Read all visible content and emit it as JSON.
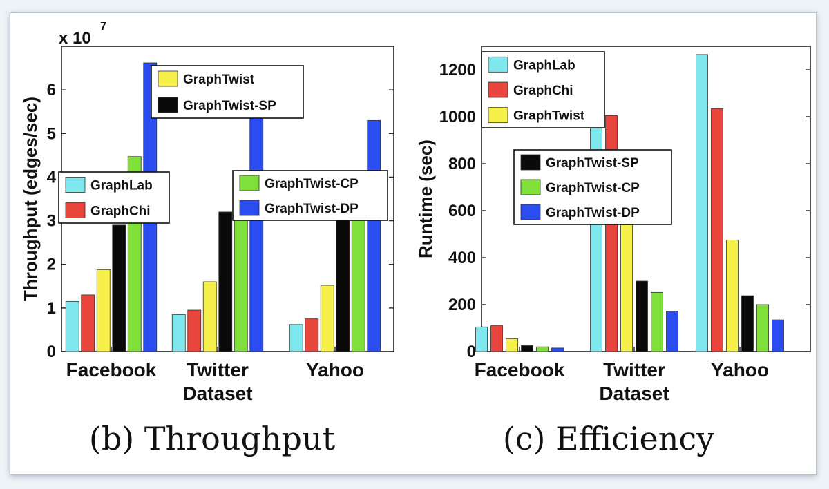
{
  "captions": {
    "left": "(b) Throughput",
    "right": "(c) Efficiency"
  },
  "colors": {
    "GraphLab": "#7ee8ee",
    "GraphChi": "#e8453c",
    "GraphTwist": "#f8f04a",
    "GraphTwist-SP": "#0a0a0a",
    "GraphTwist-CP": "#7fe03a",
    "GraphTwist-DP": "#2a4cf0"
  },
  "chart_data": [
    {
      "type": "bar",
      "categories": [
        "Facebook",
        "Twitter",
        "Yahoo"
      ],
      "xlabel": "Dataset",
      "ylabel": "Throughput (edges/sec)",
      "scale_label": "x 10",
      "scale_exp": "7",
      "ylim": [
        0,
        7
      ],
      "yticks": [
        "0",
        "1",
        "2",
        "3",
        "4",
        "5",
        "6"
      ],
      "series": [
        {
          "name": "GraphLab",
          "values": [
            1.15,
            0.85,
            0.62
          ]
        },
        {
          "name": "GraphChi",
          "values": [
            1.3,
            0.95,
            0.75
          ]
        },
        {
          "name": "GraphTwist",
          "values": [
            1.88,
            1.6,
            1.52
          ]
        },
        {
          "name": "GraphTwist-SP",
          "values": [
            2.9,
            3.2,
            3.05
          ]
        },
        {
          "name": "GraphTwist-CP",
          "values": [
            4.47,
            3.5,
            3.1
          ]
        },
        {
          "name": "GraphTwist-DP",
          "values": [
            6.62,
            5.6,
            5.3
          ]
        }
      ]
    },
    {
      "type": "bar",
      "categories": [
        "Facebook",
        "Twitter",
        "Yahoo"
      ],
      "xlabel": "Dataset",
      "ylabel": "Runtime (sec)",
      "ylim": [
        0,
        1300
      ],
      "yticks": [
        "0",
        "200",
        "400",
        "600",
        "800",
        "1000",
        "1200"
      ],
      "series": [
        {
          "name": "GraphLab",
          "values": [
            105,
            1080,
            1265
          ]
        },
        {
          "name": "GraphChi",
          "values": [
            110,
            1005,
            1035
          ]
        },
        {
          "name": "GraphTwist",
          "values": [
            55,
            540,
            475
          ]
        },
        {
          "name": "GraphTwist-SP",
          "values": [
            25,
            300,
            238
          ]
        },
        {
          "name": "GraphTwist-CP",
          "values": [
            20,
            252,
            200
          ]
        },
        {
          "name": "GraphTwist-DP",
          "values": [
            15,
            172,
            135
          ]
        }
      ]
    }
  ]
}
